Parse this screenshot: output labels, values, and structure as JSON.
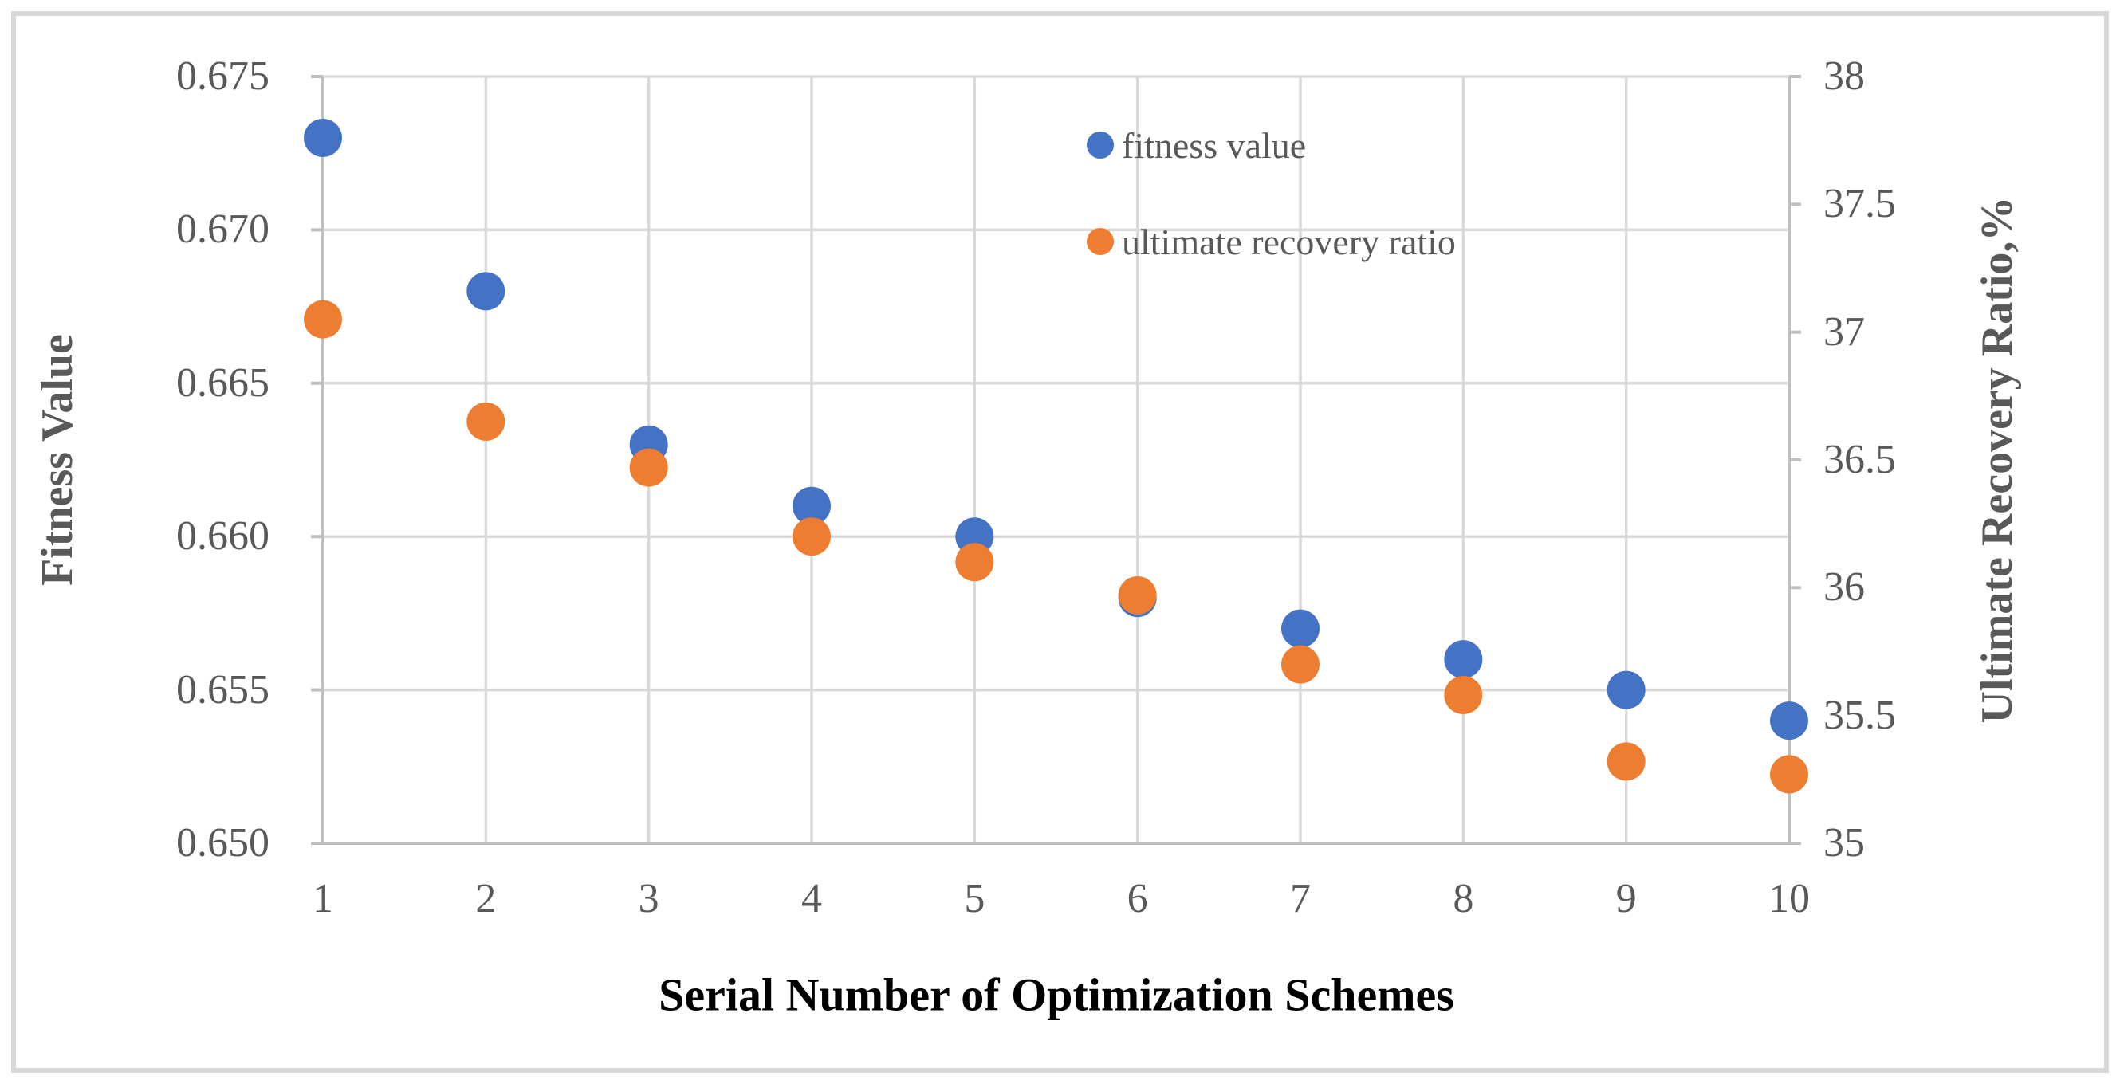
{
  "figure": {
    "background": "#ffffff",
    "border_color": "#d9d9d9",
    "gridline_color": "#d9d9d9",
    "axis_line_color": "#bfbfbf",
    "tick_label_color": "#595959",
    "axis_title_color": "#595959",
    "x_title_color": "#000000"
  },
  "chart_data": {
    "type": "scatter",
    "title": "",
    "xlabel": "Serial Number of Optimization Schemes",
    "ylabel_left": "Fitness Value",
    "ylabel_right": "Ultimate Recovery Ratio,%",
    "x": [
      1,
      2,
      3,
      4,
      5,
      6,
      7,
      8,
      9,
      10
    ],
    "series": [
      {
        "name": "fitness value",
        "axis": "left",
        "color": "#4472C4",
        "values": [
          0.673,
          0.668,
          0.663,
          0.661,
          0.66,
          0.658,
          0.657,
          0.656,
          0.655,
          0.654
        ]
      },
      {
        "name": "ultimate recovery ratio",
        "axis": "right",
        "color": "#ED7D31",
        "values": [
          37.05,
          36.65,
          36.47,
          36.2,
          36.1,
          35.97,
          35.7,
          35.58,
          35.32,
          35.27
        ]
      }
    ],
    "ylim_left": [
      0.65,
      0.675
    ],
    "ylim_right": [
      35,
      38
    ],
    "yticks_left": [
      "0.675",
      "0.670",
      "0.665",
      "0.660",
      "0.655",
      "0.650"
    ],
    "yticks_right": [
      "38",
      "37.5",
      "37",
      "36.5",
      "36",
      "35.5",
      "35"
    ],
    "xticks": [
      "1",
      "2",
      "3",
      "4",
      "5",
      "6",
      "7",
      "8",
      "9",
      "10"
    ],
    "grid": true,
    "legend_position": "inside-top-center"
  }
}
